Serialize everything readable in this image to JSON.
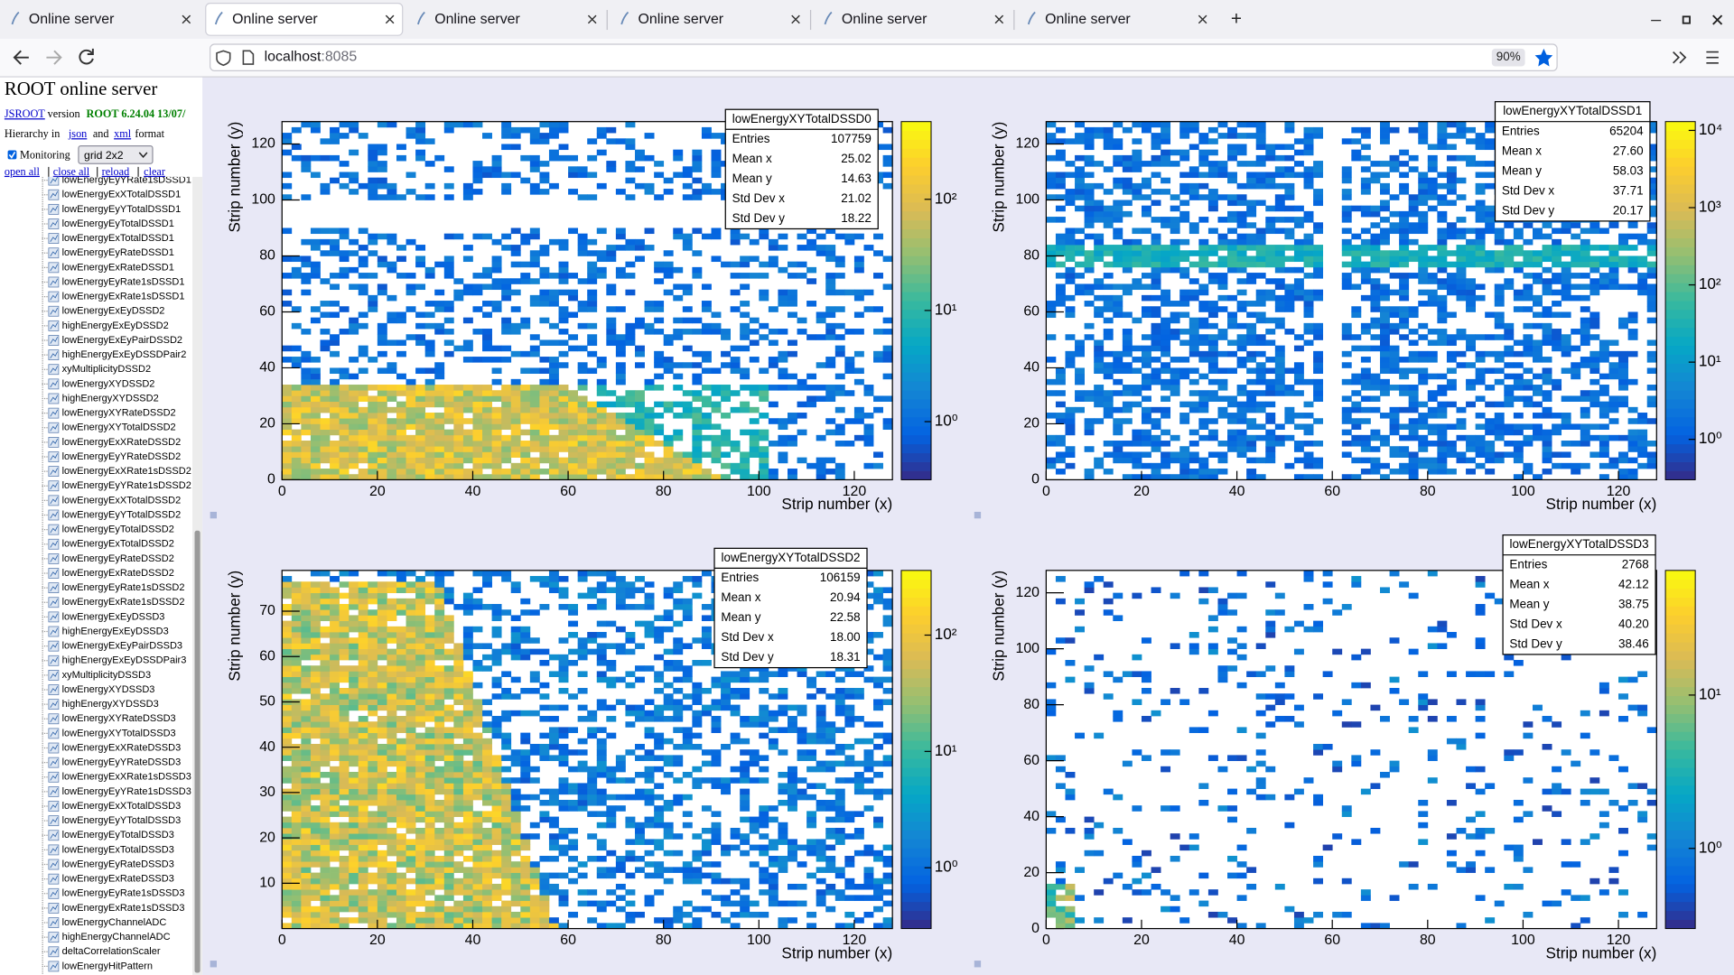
{
  "browser": {
    "tabs": [
      "Online server",
      "Online server",
      "Online server",
      "Online server",
      "Online server",
      "Online server"
    ],
    "active_tab": 1,
    "url": {
      "host": "localhost",
      "port": ":8085"
    },
    "zoom": "90%"
  },
  "sidebar": {
    "title": "ROOT online server",
    "jsroot": "JSROOT",
    "version_word": "version",
    "version": "ROOT 6.24.04 13/07/",
    "hierarchy": [
      "Hierarchy in",
      "json",
      "and",
      "xml",
      "format"
    ],
    "monitoring": "Monitoring",
    "layout": "grid 2x2",
    "actions": [
      "open all",
      "close all",
      "reload",
      "clear"
    ],
    "items": [
      "lowEnergyEyYRate1sDSSD1",
      "lowEnergyExXTotalDSSD1",
      "lowEnergyEyYTotalDSSD1",
      "lowEnergyEyTotalDSSD1",
      "lowEnergyExTotalDSSD1",
      "lowEnergyEyRateDSSD1",
      "lowEnergyExRateDSSD1",
      "lowEnergyEyRate1sDSSD1",
      "lowEnergyExRate1sDSSD1",
      "lowEnergyExEyDSSD2",
      "highEnergyExEyDSSD2",
      "lowEnergyExEyPairDSSD2",
      "highEnergyExEyDSSDPair2",
      "xyMultiplicityDSSD2",
      "lowEnergyXYDSSD2",
      "highEnergyXYDSSD2",
      "lowEnergyXYRateDSSD2",
      "lowEnergyXYTotalDSSD2",
      "lowEnergyExXRateDSSD2",
      "lowEnergyEyYRateDSSD2",
      "lowEnergyExXRate1sDSSD2",
      "lowEnergyEyYRate1sDSSD2",
      "lowEnergyExXTotalDSSD2",
      "lowEnergyEyYTotalDSSD2",
      "lowEnergyEyTotalDSSD2",
      "lowEnergyExTotalDSSD2",
      "lowEnergyEyRateDSSD2",
      "lowEnergyExRateDSSD2",
      "lowEnergyEyRate1sDSSD2",
      "lowEnergyExRate1sDSSD2",
      "lowEnergyExEyDSSD3",
      "highEnergyExEyDSSD3",
      "lowEnergyExEyPairDSSD3",
      "highEnergyExEyDSSDPair3",
      "xyMultiplicityDSSD3",
      "lowEnergyXYDSSD3",
      "highEnergyXYDSSD3",
      "lowEnergyXYRateDSSD3",
      "lowEnergyXYTotalDSSD3",
      "lowEnergyExXRateDSSD3",
      "lowEnergyEyYRateDSSD3",
      "lowEnergyExXRate1sDSSD3",
      "lowEnergyEyYRate1sDSSD3",
      "lowEnergyExXTotalDSSD3",
      "lowEnergyEyYTotalDSSD3",
      "lowEnergyEyTotalDSSD3",
      "lowEnergyExTotalDSSD3",
      "lowEnergyEyRateDSSD3",
      "lowEnergyExRateDSSD3",
      "lowEnergyEyRate1sDSSD3",
      "lowEnergyExRate1sDSSD3",
      "lowEnergyChannelADC",
      "highEnergyChannelADC",
      "deltaCorrelationScaler",
      "lowEnergyHitPattern"
    ]
  },
  "chart_data": [
    {
      "type": "heatmap",
      "title": "lowEnergyXYTotalDSSD0",
      "x_label": "Strip number (x)",
      "y_label": "Strip number (y)",
      "xlim": [
        0,
        128
      ],
      "ylim": [
        0,
        128
      ],
      "xticks": [
        0,
        20,
        40,
        60,
        80,
        100,
        120
      ],
      "yticks": [
        0,
        20,
        40,
        60,
        80,
        100,
        120
      ],
      "zlim": [
        0.3,
        500
      ],
      "zscale": "log",
      "zticks": [
        {
          "value": 1,
          "label": "10⁰"
        },
        {
          "value": 10,
          "label": "10¹"
        },
        {
          "value": 100,
          "label": "10²"
        }
      ],
      "stats": [
        {
          "name": "Entries",
          "value": 107759
        },
        {
          "name": "Mean x",
          "value": 25.02
        },
        {
          "name": "Mean y",
          "value": 14.63
        },
        {
          "name": "Std Dev x",
          "value": 21.02
        },
        {
          "name": "Std Dev y",
          "value": 18.22
        }
      ]
    },
    {
      "type": "heatmap",
      "title": "lowEnergyXYTotalDSSD1",
      "x_label": "Strip number (x)",
      "y_label": "Strip number (y)",
      "xlim": [
        0,
        128
      ],
      "ylim": [
        0,
        128
      ],
      "xticks": [
        0,
        20,
        40,
        60,
        80,
        100,
        120
      ],
      "yticks": [
        0,
        20,
        40,
        60,
        80,
        100,
        120
      ],
      "zlim": [
        0.3,
        13000
      ],
      "zscale": "log",
      "zticks": [
        {
          "value": 1,
          "label": "10⁰"
        },
        {
          "value": 10,
          "label": "10¹"
        },
        {
          "value": 100,
          "label": "10²"
        },
        {
          "value": 1000,
          "label": "10³"
        },
        {
          "value": 10000,
          "label": "10⁴"
        }
      ],
      "stats": [
        {
          "name": "Entries",
          "value": 65204
        },
        {
          "name": "Mean x",
          "value": {
            "value": 27.6,
            "label": "27.60"
          }
        },
        {
          "name": "Mean y",
          "value": 58.03
        },
        {
          "name": "Std Dev x",
          "value": 37.71
        },
        {
          "name": "Std Dev y",
          "value": 20.17
        }
      ]
    },
    {
      "type": "heatmap",
      "title": "lowEnergyXYTotalDSSD2",
      "x_label": "Strip number (x)",
      "y_label": "Strip number (y)",
      "xlim": [
        0,
        128
      ],
      "ylim": [
        0,
        79
      ],
      "xticks": [
        0,
        20,
        40,
        60,
        80,
        100,
        120
      ],
      "yticks": [
        10,
        20,
        30,
        40,
        50,
        60,
        70
      ],
      "zlim": [
        0.3,
        360
      ],
      "zscale": "log",
      "zticks": [
        {
          "value": 1,
          "label": "10⁰"
        },
        {
          "value": 10,
          "label": "10¹"
        },
        {
          "value": 100,
          "label": "10²"
        }
      ],
      "stats": [
        {
          "name": "Entries",
          "value": 106159
        },
        {
          "name": "Mean x",
          "value": 20.94
        },
        {
          "name": "Mean y",
          "value": 22.58
        },
        {
          "name": "Std Dev x",
          "value": {
            "value": 18,
            "label": "18.00"
          }
        },
        {
          "name": "Std Dev y",
          "value": 18.31
        }
      ]
    },
    {
      "type": "heatmap",
      "title": "lowEnergyXYTotalDSSD3",
      "x_label": "Strip number (x)",
      "y_label": "Strip number (y)",
      "xlim": [
        0,
        128
      ],
      "ylim": [
        0,
        128
      ],
      "xticks": [
        0,
        20,
        40,
        60,
        80,
        100,
        120
      ],
      "yticks": [
        0,
        20,
        40,
        60,
        80,
        100,
        120
      ],
      "zlim": [
        0.3,
        65
      ],
      "zscale": "log",
      "zticks": [
        {
          "value": 1,
          "label": "10⁰"
        },
        {
          "value": 10,
          "label": "10¹"
        }
      ],
      "stats": [
        {
          "name": "Entries",
          "value": 2768
        },
        {
          "name": "Mean x",
          "value": 42.12
        },
        {
          "name": "Mean y",
          "value": 38.75
        },
        {
          "name": "Std Dev x",
          "value": {
            "value": 40.2,
            "label": "40.20"
          }
        },
        {
          "name": "Std Dev y",
          "value": 38.46
        }
      ]
    }
  ]
}
